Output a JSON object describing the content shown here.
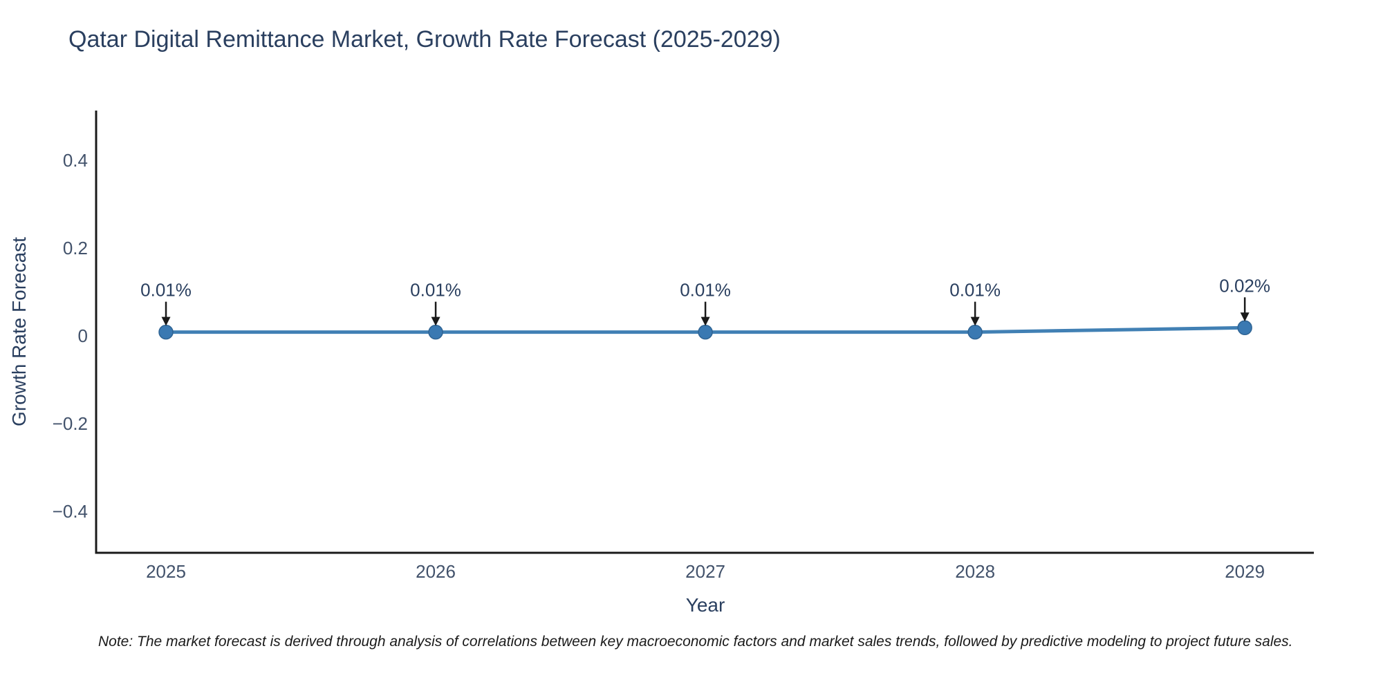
{
  "title": "Qatar Digital Remittance Market, Growth Rate Forecast (2025-2029)",
  "note": "Note: The market forecast is derived through analysis of correlations between key macroeconomic factors and market sales trends, followed by predictive modeling to project future sales.",
  "chart_data": {
    "type": "line",
    "x": [
      2025,
      2026,
      2027,
      2028,
      2029
    ],
    "xticklabels": [
      "2025",
      "2026",
      "2027",
      "2028",
      "2029"
    ],
    "values": [
      0.01,
      0.01,
      0.01,
      0.01,
      0.02
    ],
    "point_labels": [
      "0.01%",
      "0.01%",
      "0.01%",
      "0.01%",
      "0.02%"
    ],
    "xlabel": "Year",
    "ylabel": "Growth Rate Forecast",
    "yticks": [
      {
        "value": 0.4,
        "label": "0.4"
      },
      {
        "value": 0.2,
        "label": "0.2"
      },
      {
        "value": 0,
        "label": "0"
      },
      {
        "value": -0.2,
        "label": "−0.2"
      },
      {
        "value": -0.4,
        "label": "−0.4"
      }
    ],
    "xlim": [
      2024.741,
      2029.256
    ],
    "ylim": [
      -0.493,
      0.515
    ],
    "grid": false,
    "legend": "none",
    "colors": {
      "line": "#4180b4",
      "marker_fill": "#3a79b2",
      "marker_edge": "#2f6494",
      "axis_spine": "#1a1a1a",
      "tick_text": "#42526b",
      "title_text": "#2a3f5f",
      "annotation_text": "#2a3f5f",
      "annotation_arrow": "#1a1a1a"
    }
  }
}
